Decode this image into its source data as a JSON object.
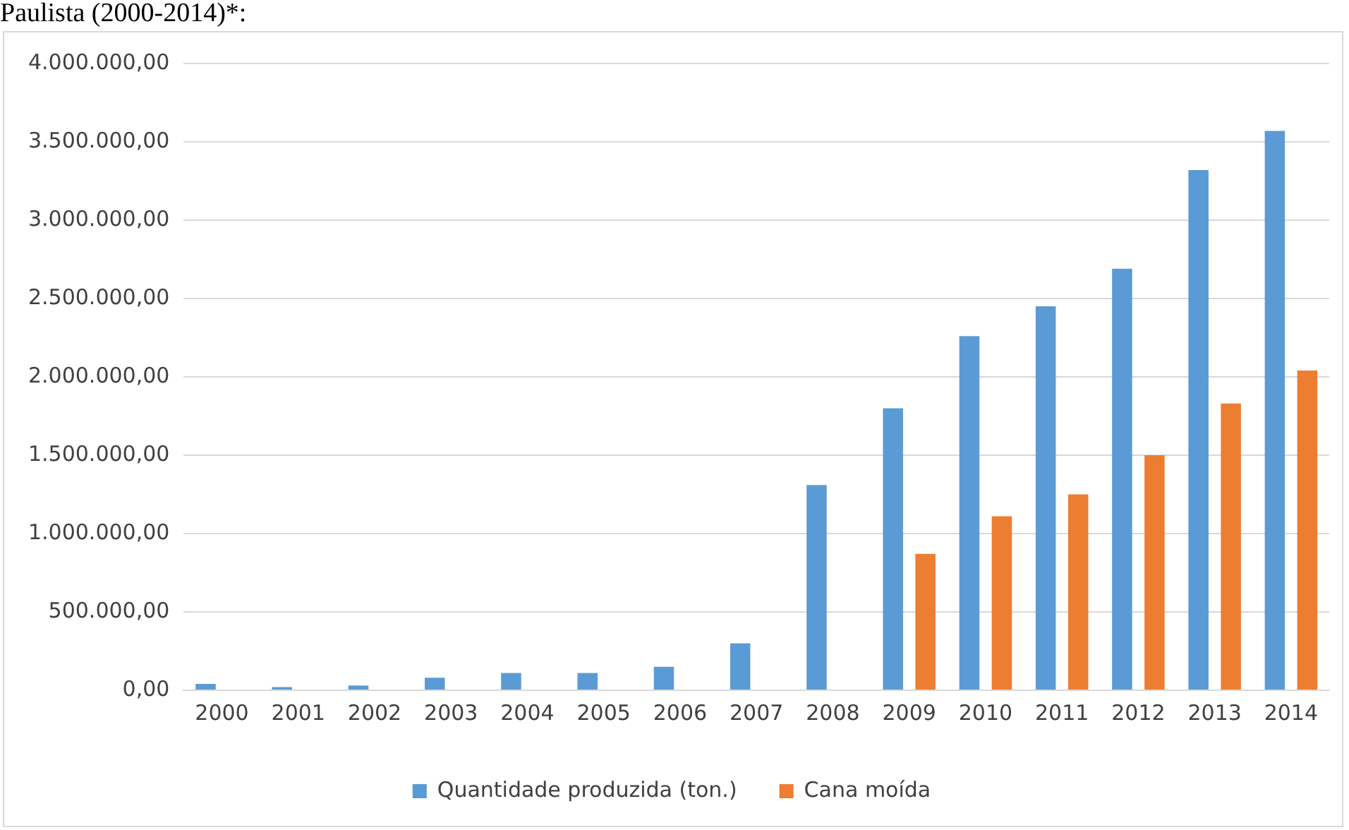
{
  "chart_data": {
    "type": "bar",
    "title": "Paulista (2000-2014)*:",
    "categories": [
      "2000",
      "2001",
      "2002",
      "2003",
      "2004",
      "2005",
      "2006",
      "2007",
      "2008",
      "2009",
      "2010",
      "2011",
      "2012",
      "2013",
      "2014"
    ],
    "series": [
      {
        "name": "Quantidade produzida (ton.)",
        "color": "#5b9bd5",
        "values": [
          40000,
          20000,
          30000,
          80000,
          110000,
          110000,
          150000,
          300000,
          1310000,
          1800000,
          2260000,
          2450000,
          2690000,
          3320000,
          3570000
        ]
      },
      {
        "name": "Cana moída",
        "color": "#ed7d31",
        "values": [
          null,
          null,
          null,
          null,
          null,
          null,
          null,
          null,
          null,
          870000,
          1110000,
          1250000,
          1500000,
          1830000,
          2040000
        ]
      }
    ],
    "ylim": [
      0,
      4000000
    ],
    "yticks": [
      {
        "value": 0,
        "label": "0,00"
      },
      {
        "value": 500000,
        "label": "500.000,00"
      },
      {
        "value": 1000000,
        "label": "1.000.000,00"
      },
      {
        "value": 1500000,
        "label": "1.500.000,00"
      },
      {
        "value": 2000000,
        "label": "2.000.000,00"
      },
      {
        "value": 2500000,
        "label": "2.500.000,00"
      },
      {
        "value": 3000000,
        "label": "3.000.000,00"
      },
      {
        "value": 3500000,
        "label": "3.500.000,00"
      },
      {
        "value": 4000000,
        "label": "4.000.000,00"
      }
    ],
    "grid": "y",
    "legend": "bottom"
  }
}
